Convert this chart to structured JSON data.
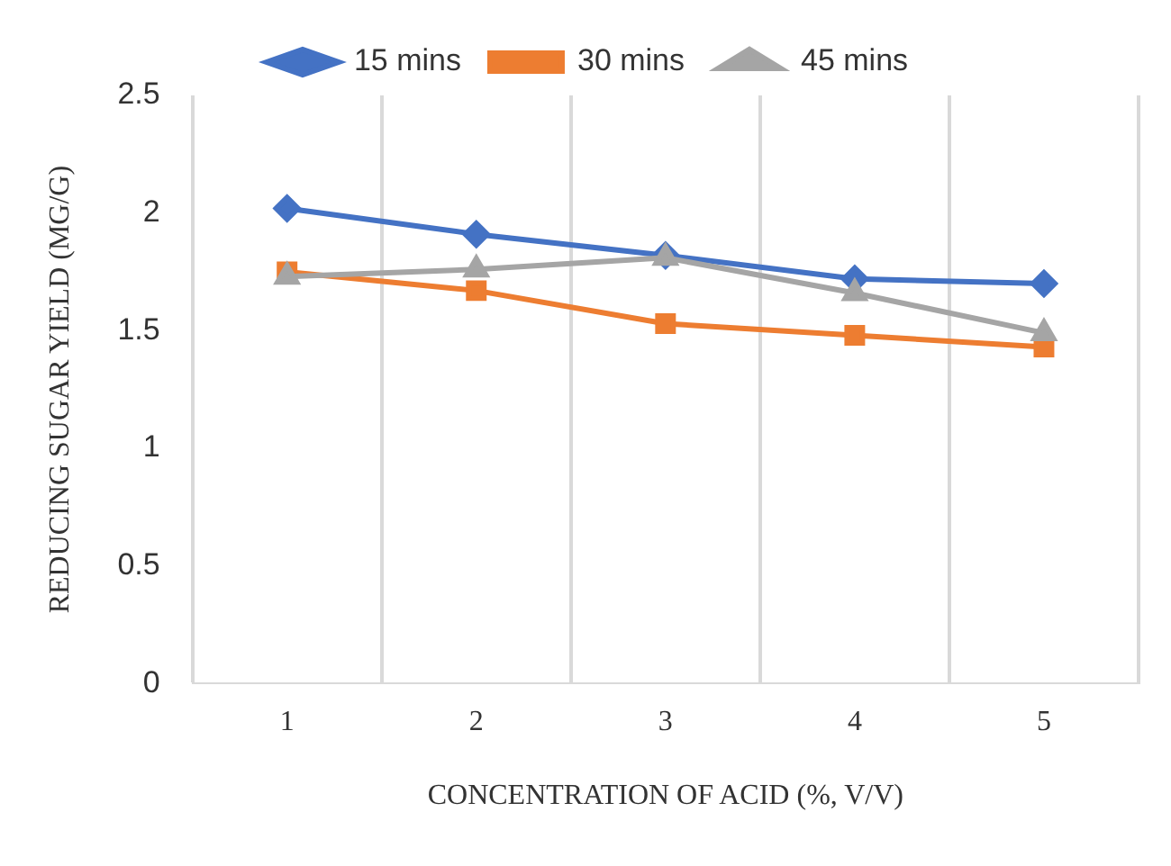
{
  "chart_data": {
    "type": "line",
    "xlabel": "CONCENTRATION OF ACID (%, V/V)",
    "ylabel": "REDUCING SUGAR YIELD (MG/G)",
    "categories": [
      "1",
      "2",
      "3",
      "4",
      "5"
    ],
    "series": [
      {
        "name": "15 mins",
        "color": "#4472c4",
        "marker": "diamond",
        "values": [
          2.02,
          1.91,
          1.82,
          1.72,
          1.7
        ]
      },
      {
        "name": "30 mins",
        "color": "#ed7d31",
        "marker": "square",
        "values": [
          1.75,
          1.67,
          1.53,
          1.48,
          1.43
        ]
      },
      {
        "name": "45 mins",
        "color": "#a5a5a5",
        "marker": "triangle",
        "values": [
          1.73,
          1.76,
          1.81,
          1.66,
          1.49
        ]
      }
    ],
    "ylim": [
      0,
      2.5
    ],
    "yticks": [
      0,
      0.5,
      1,
      1.5,
      2,
      2.5
    ],
    "grid": "x",
    "legend": "top",
    "line_style": "solid"
  }
}
